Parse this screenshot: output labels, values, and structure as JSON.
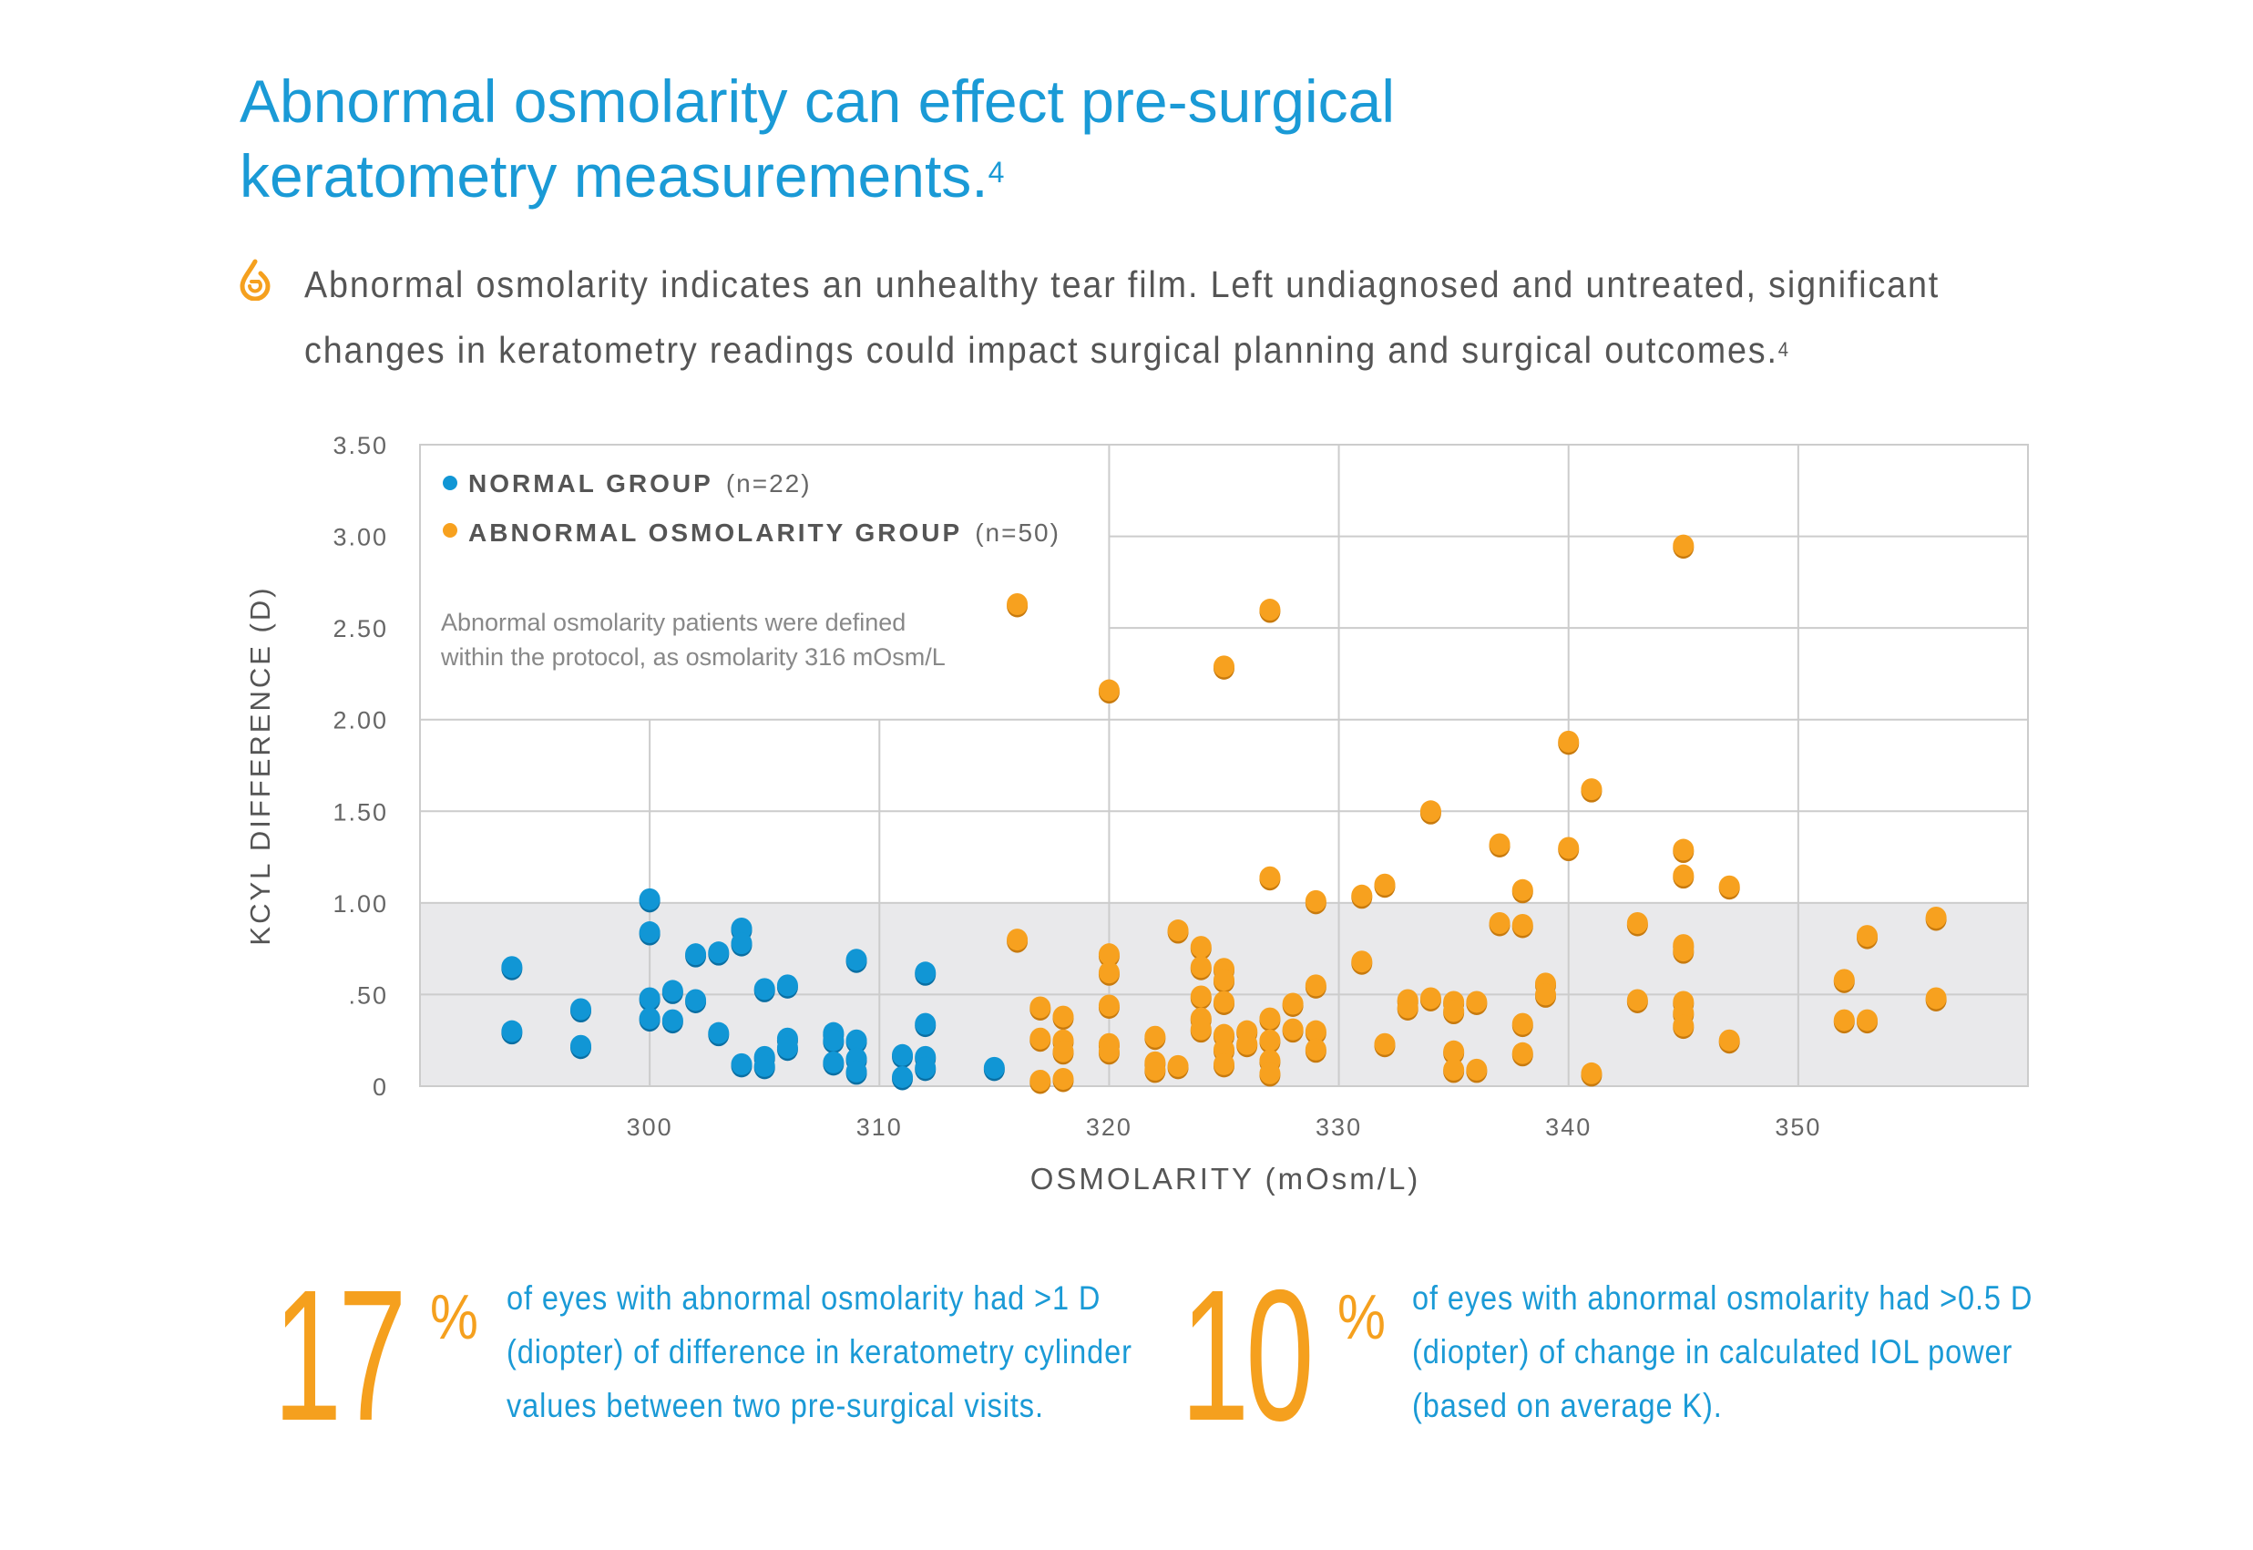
{
  "header": {
    "title_line1": "Abnormal osmolarity can effect pre-surgical",
    "title_line2": "keratometry measurements.",
    "title_sup": "4",
    "icon": "tear-drop-icon",
    "intro_line1": "Abnormal osmolarity indicates an unhealthy tear film. Left undiagnosed and untreated, significant",
    "intro_line2": "changes in keratometry readings could impact surgical planning and surgical outcomes.",
    "intro_sup": "4"
  },
  "colors": {
    "title": "#1a9ad6",
    "normal": "#1196d5",
    "abnormal": "#f7a11f",
    "shade": "#e9e9eb",
    "grid": "#cccccc"
  },
  "chart_data": {
    "type": "scatter",
    "xlabel": "OSMOLARITY (mOsm/L)",
    "ylabel": "KCYL DIFFERENCE (D)",
    "xlim": [
      290,
      360
    ],
    "ylim": [
      0,
      3.5
    ],
    "x_ticks": [
      300,
      310,
      320,
      330,
      340,
      350
    ],
    "x_tick_labels": [
      "300",
      "310",
      "320",
      "330",
      "340",
      "350"
    ],
    "y_ticks": [
      0,
      0.5,
      1.0,
      1.5,
      2.0,
      2.5,
      3.0,
      3.5
    ],
    "y_tick_labels": [
      "0",
      ".50",
      "1.00",
      "1.50",
      "2.00",
      "2.50",
      "3.00",
      "3.50"
    ],
    "grid": true,
    "shaded_band": [
      0,
      1.0
    ],
    "legend_position": "top-left",
    "annotation_line1": "Abnormal osmolarity patients were defined",
    "annotation_line2": "within the protocol, as osmolarity 316 mOsm/L",
    "series": [
      {
        "name": "NORMAL GROUP",
        "count_label": "(n=22)",
        "color": "#1196d5",
        "points": [
          [
            294,
            0.65
          ],
          [
            294,
            0.3
          ],
          [
            297,
            0.42
          ],
          [
            297,
            0.22
          ],
          [
            300,
            1.02
          ],
          [
            300,
            0.84
          ],
          [
            300,
            0.48
          ],
          [
            300,
            0.37
          ],
          [
            301,
            0.52
          ],
          [
            301,
            0.36
          ],
          [
            302,
            0.72
          ],
          [
            302,
            0.47
          ],
          [
            303,
            0.73
          ],
          [
            303,
            0.29
          ],
          [
            304,
            0.86
          ],
          [
            304,
            0.78
          ],
          [
            304,
            0.12
          ],
          [
            305,
            0.53
          ],
          [
            305,
            0.16
          ],
          [
            305,
            0.11
          ],
          [
            306,
            0.55
          ],
          [
            306,
            0.26
          ],
          [
            306,
            0.21
          ],
          [
            308,
            0.29
          ],
          [
            308,
            0.25
          ],
          [
            308,
            0.13
          ],
          [
            309,
            0.69
          ],
          [
            309,
            0.25
          ],
          [
            309,
            0.15
          ],
          [
            309,
            0.08
          ],
          [
            311,
            0.17
          ],
          [
            311,
            0.05
          ],
          [
            312,
            0.62
          ],
          [
            312,
            0.34
          ],
          [
            312,
            0.16
          ],
          [
            312,
            0.1
          ],
          [
            315,
            0.1
          ]
        ]
      },
      {
        "name": "ABNORMAL OSMOLARITY GROUP",
        "count_label": "(n=50)",
        "color": "#f7a11f",
        "points": [
          [
            316,
            2.63
          ],
          [
            316,
            0.8
          ],
          [
            317,
            0.43
          ],
          [
            317,
            0.26
          ],
          [
            317,
            0.03
          ],
          [
            318,
            0.38
          ],
          [
            318,
            0.25
          ],
          [
            318,
            0.19
          ],
          [
            318,
            0.04
          ],
          [
            320,
            2.16
          ],
          [
            320,
            0.72
          ],
          [
            320,
            0.62
          ],
          [
            320,
            0.44
          ],
          [
            320,
            0.23
          ],
          [
            320,
            0.19
          ],
          [
            322,
            0.27
          ],
          [
            322,
            0.13
          ],
          [
            322,
            0.09
          ],
          [
            323,
            0.85
          ],
          [
            323,
            0.11
          ],
          [
            324,
            0.76
          ],
          [
            324,
            0.65
          ],
          [
            324,
            0.49
          ],
          [
            324,
            0.37
          ],
          [
            324,
            0.31
          ],
          [
            325,
            2.29
          ],
          [
            325,
            0.64
          ],
          [
            325,
            0.58
          ],
          [
            325,
            0.46
          ],
          [
            325,
            0.28
          ],
          [
            325,
            0.2
          ],
          [
            325,
            0.12
          ],
          [
            326,
            0.3
          ],
          [
            326,
            0.23
          ],
          [
            327,
            2.6
          ],
          [
            327,
            1.14
          ],
          [
            327,
            0.37
          ],
          [
            327,
            0.25
          ],
          [
            327,
            0.14
          ],
          [
            327,
            0.07
          ],
          [
            328,
            0.45
          ],
          [
            328,
            0.31
          ],
          [
            329,
            1.01
          ],
          [
            329,
            0.55
          ],
          [
            329,
            0.3
          ],
          [
            329,
            0.2
          ],
          [
            331,
            1.04
          ],
          [
            331,
            0.68
          ],
          [
            332,
            1.1
          ],
          [
            332,
            0.23
          ],
          [
            333,
            0.47
          ],
          [
            333,
            0.43
          ],
          [
            334,
            1.5
          ],
          [
            334,
            0.48
          ],
          [
            335,
            0.46
          ],
          [
            335,
            0.41
          ],
          [
            335,
            0.19
          ],
          [
            335,
            0.09
          ],
          [
            336,
            0.46
          ],
          [
            336,
            0.09
          ],
          [
            337,
            1.32
          ],
          [
            337,
            0.89
          ],
          [
            338,
            1.07
          ],
          [
            338,
            0.88
          ],
          [
            338,
            0.34
          ],
          [
            338,
            0.18
          ],
          [
            339,
            0.56
          ],
          [
            339,
            0.5
          ],
          [
            340,
            1.88
          ],
          [
            340,
            1.3
          ],
          [
            341,
            1.62
          ],
          [
            341,
            0.07
          ],
          [
            343,
            0.89
          ],
          [
            343,
            0.47
          ],
          [
            345,
            2.95
          ],
          [
            345,
            1.29
          ],
          [
            345,
            1.15
          ],
          [
            345,
            0.77
          ],
          [
            345,
            0.74
          ],
          [
            345,
            0.46
          ],
          [
            345,
            0.4
          ],
          [
            345,
            0.33
          ],
          [
            347,
            1.09
          ],
          [
            347,
            0.25
          ],
          [
            352,
            0.58
          ],
          [
            352,
            0.36
          ],
          [
            353,
            0.82
          ],
          [
            353,
            0.36
          ],
          [
            356,
            0.92
          ],
          [
            356,
            0.48
          ]
        ]
      }
    ]
  },
  "stats": [
    {
      "value": "17",
      "unit": "%",
      "line1": "of eyes with abnormal osmolarity had >1 D",
      "line2": "(diopter) of difference in keratometry cylinder",
      "line3": "values between two pre-surgical visits."
    },
    {
      "value": "10",
      "unit": "%",
      "line1": "of eyes with abnormal osmolarity had >0.5 D",
      "line2": "(diopter) of change in calculated IOL power",
      "line3": "(based on average K)."
    }
  ]
}
